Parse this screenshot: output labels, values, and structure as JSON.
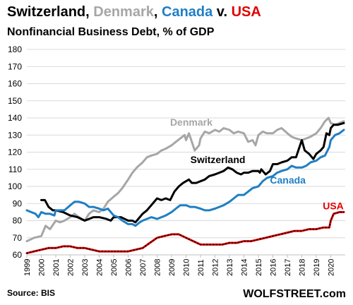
{
  "header": {
    "title_parts": [
      {
        "text": "Switzerland",
        "color": "#000000"
      },
      {
        "text": ", ",
        "color": "#000000"
      },
      {
        "text": "Denmark",
        "color": "#a6a6a6"
      },
      {
        "text": ", ",
        "color": "#000000"
      },
      {
        "text": "Canada",
        "color": "#1f7fc4"
      },
      {
        "text": " v. ",
        "color": "#000000"
      },
      {
        "text": "USA",
        "color": "#e00000"
      }
    ],
    "subtitle": "Nonfinancial Business Debt, % of GDP"
  },
  "footer": {
    "source": "Source: BIS",
    "brand": "WOLFSTREET.com"
  },
  "chart_data": {
    "type": "line",
    "title": "Switzerland, Denmark, Canada v. USA",
    "subtitle": "Nonfinancial Business Debt, % of GDP",
    "xlim": [
      1999.0,
      2021.0
    ],
    "ylim": [
      60,
      180
    ],
    "y_ticks": [
      60,
      70,
      80,
      90,
      100,
      110,
      120,
      130,
      140,
      150,
      160,
      170,
      180
    ],
    "x_ticks": [
      1999,
      2000,
      2001,
      2002,
      2003,
      2004,
      2005,
      2006,
      2007,
      2008,
      2009,
      2010,
      2011,
      2012,
      2013,
      2014,
      2015,
      2016,
      2017,
      2018,
      2019,
      2020
    ],
    "grid": "horizontal",
    "legend": "inline labels",
    "series": [
      {
        "name": "Denmark",
        "color": "#a6a6a6",
        "label_at": [
          2008.9,
          135.5
        ],
        "points": [
          [
            1999.0,
            68
          ],
          [
            1999.5,
            70
          ],
          [
            2000.0,
            71
          ],
          [
            2000.3,
            77
          ],
          [
            2000.6,
            75
          ],
          [
            2001.0,
            80
          ],
          [
            2001.3,
            79
          ],
          [
            2001.6,
            80
          ],
          [
            2002.0,
            82
          ],
          [
            2002.3,
            84
          ],
          [
            2002.6,
            82
          ],
          [
            2003.0,
            80
          ],
          [
            2003.3,
            84
          ],
          [
            2003.6,
            86
          ],
          [
            2004.0,
            85
          ],
          [
            2004.3,
            87
          ],
          [
            2004.6,
            91
          ],
          [
            2005.0,
            94
          ],
          [
            2005.3,
            96
          ],
          [
            2005.6,
            99
          ],
          [
            2006.0,
            104
          ],
          [
            2006.3,
            108
          ],
          [
            2006.6,
            111
          ],
          [
            2007.0,
            114
          ],
          [
            2007.3,
            117
          ],
          [
            2007.6,
            118
          ],
          [
            2008.0,
            119
          ],
          [
            2008.3,
            121
          ],
          [
            2008.6,
            122
          ],
          [
            2009.0,
            124
          ],
          [
            2009.3,
            126
          ],
          [
            2009.6,
            128
          ],
          [
            2009.9,
            130
          ],
          [
            2010.0,
            127
          ],
          [
            2010.2,
            131
          ],
          [
            2010.4,
            126
          ],
          [
            2010.6,
            121
          ],
          [
            2010.9,
            124
          ],
          [
            2011.0,
            128
          ],
          [
            2011.3,
            132
          ],
          [
            2011.6,
            131
          ],
          [
            2012.0,
            133
          ],
          [
            2012.3,
            132
          ],
          [
            2012.6,
            134
          ],
          [
            2013.0,
            133
          ],
          [
            2013.3,
            131
          ],
          [
            2013.6,
            132
          ],
          [
            2014.0,
            131
          ],
          [
            2014.3,
            126
          ],
          [
            2014.6,
            127
          ],
          [
            2014.8,
            124
          ],
          [
            2015.0,
            130
          ],
          [
            2015.3,
            132
          ],
          [
            2015.6,
            131
          ],
          [
            2016.0,
            131
          ],
          [
            2016.3,
            133
          ],
          [
            2016.6,
            134
          ],
          [
            2017.0,
            131
          ],
          [
            2017.3,
            129
          ],
          [
            2017.6,
            128
          ],
          [
            2018.0,
            127
          ],
          [
            2018.3,
            128
          ],
          [
            2018.6,
            129
          ],
          [
            2019.0,
            131
          ],
          [
            2019.3,
            134
          ],
          [
            2019.6,
            138
          ],
          [
            2019.85,
            140
          ],
          [
            2020.0,
            137
          ],
          [
            2020.3,
            136
          ],
          [
            2020.6,
            137
          ],
          [
            2020.9,
            138
          ]
        ]
      },
      {
        "name": "Switzerland",
        "color": "#000000",
        "label_at": [
          2010.3,
          113.6
        ],
        "points": [
          [
            2000.0,
            92
          ],
          [
            2000.25,
            92
          ],
          [
            2000.5,
            88
          ],
          [
            2000.8,
            86
          ],
          [
            2001.0,
            86
          ],
          [
            2001.5,
            85
          ],
          [
            2002.0,
            83
          ],
          [
            2002.5,
            82
          ],
          [
            2003.0,
            80
          ],
          [
            2003.3,
            81
          ],
          [
            2003.6,
            82
          ],
          [
            2004.0,
            82
          ],
          [
            2004.5,
            81
          ],
          [
            2004.8,
            80
          ],
          [
            2005.0,
            82
          ],
          [
            2005.5,
            82
          ],
          [
            2006.0,
            80
          ],
          [
            2006.3,
            80
          ],
          [
            2006.5,
            79
          ],
          [
            2006.7,
            81
          ],
          [
            2007.0,
            84
          ],
          [
            2007.3,
            86
          ],
          [
            2007.6,
            89
          ],
          [
            2008.0,
            93
          ],
          [
            2008.3,
            92
          ],
          [
            2008.6,
            93
          ],
          [
            2008.9,
            92
          ],
          [
            2009.2,
            97
          ],
          [
            2009.5,
            100
          ],
          [
            2009.8,
            102
          ],
          [
            2010.0,
            103
          ],
          [
            2010.2,
            104
          ],
          [
            2010.4,
            102
          ],
          [
            2010.7,
            102
          ],
          [
            2011.0,
            103
          ],
          [
            2011.3,
            104
          ],
          [
            2011.6,
            106
          ],
          [
            2012.0,
            107
          ],
          [
            2012.3,
            108
          ],
          [
            2012.6,
            109
          ],
          [
            2012.9,
            111
          ],
          [
            2013.2,
            110
          ],
          [
            2013.5,
            108
          ],
          [
            2013.8,
            107
          ],
          [
            2014.0,
            108
          ],
          [
            2014.3,
            108
          ],
          [
            2014.6,
            109
          ],
          [
            2015.0,
            109
          ],
          [
            2015.1,
            108
          ],
          [
            2015.2,
            110
          ],
          [
            2015.5,
            107
          ],
          [
            2015.8,
            109
          ],
          [
            2016.0,
            113
          ],
          [
            2016.3,
            113
          ],
          [
            2016.6,
            114
          ],
          [
            2017.0,
            115
          ],
          [
            2017.3,
            117
          ],
          [
            2017.6,
            117
          ],
          [
            2017.8,
            122
          ],
          [
            2018.0,
            127
          ],
          [
            2018.2,
            121
          ],
          [
            2018.5,
            119
          ],
          [
            2018.8,
            116
          ],
          [
            2019.0,
            119
          ],
          [
            2019.3,
            121
          ],
          [
            2019.5,
            123
          ],
          [
            2019.7,
            131
          ],
          [
            2019.9,
            130
          ],
          [
            2020.0,
            134
          ],
          [
            2020.2,
            136
          ],
          [
            2020.5,
            136
          ],
          [
            2020.9,
            137
          ]
        ]
      },
      {
        "name": "Canada",
        "color": "#1f7fc4",
        "label_at": [
          2015.8,
          101.7
        ],
        "points": [
          [
            1999.0,
            86
          ],
          [
            1999.3,
            85
          ],
          [
            1999.6,
            84
          ],
          [
            1999.8,
            82
          ],
          [
            2000.0,
            85
          ],
          [
            2000.3,
            84
          ],
          [
            2000.6,
            84
          ],
          [
            2000.9,
            83
          ],
          [
            2001.0,
            86
          ],
          [
            2001.3,
            86
          ],
          [
            2001.6,
            86
          ],
          [
            2002.0,
            89
          ],
          [
            2002.3,
            91
          ],
          [
            2002.6,
            91
          ],
          [
            2003.0,
            90
          ],
          [
            2003.3,
            88
          ],
          [
            2003.6,
            88
          ],
          [
            2004.0,
            87
          ],
          [
            2004.3,
            86
          ],
          [
            2004.6,
            87
          ],
          [
            2005.0,
            83
          ],
          [
            2005.3,
            82
          ],
          [
            2005.6,
            80
          ],
          [
            2006.0,
            78
          ],
          [
            2006.3,
            78
          ],
          [
            2006.5,
            77
          ],
          [
            2006.8,
            79
          ],
          [
            2007.0,
            80
          ],
          [
            2007.3,
            81
          ],
          [
            2007.6,
            82
          ],
          [
            2008.0,
            81
          ],
          [
            2008.3,
            82
          ],
          [
            2008.6,
            83
          ],
          [
            2009.0,
            85
          ],
          [
            2009.3,
            87
          ],
          [
            2009.6,
            89
          ],
          [
            2010.0,
            89
          ],
          [
            2010.3,
            88
          ],
          [
            2010.6,
            88
          ],
          [
            2011.0,
            87
          ],
          [
            2011.3,
            86
          ],
          [
            2011.6,
            86
          ],
          [
            2012.0,
            87
          ],
          [
            2012.3,
            88
          ],
          [
            2012.6,
            89
          ],
          [
            2013.0,
            91
          ],
          [
            2013.3,
            93
          ],
          [
            2013.6,
            95
          ],
          [
            2014.0,
            95
          ],
          [
            2014.3,
            97
          ],
          [
            2014.6,
            99
          ],
          [
            2015.0,
            100
          ],
          [
            2015.3,
            103
          ],
          [
            2015.6,
            105
          ],
          [
            2016.0,
            106
          ],
          [
            2016.3,
            108
          ],
          [
            2016.6,
            109
          ],
          [
            2017.0,
            110
          ],
          [
            2017.3,
            112
          ],
          [
            2017.6,
            111
          ],
          [
            2018.0,
            111
          ],
          [
            2018.3,
            112
          ],
          [
            2018.6,
            114
          ],
          [
            2019.0,
            115
          ],
          [
            2019.3,
            117
          ],
          [
            2019.6,
            118
          ],
          [
            2019.9,
            123
          ],
          [
            2020.0,
            127
          ],
          [
            2020.3,
            130
          ],
          [
            2020.6,
            131
          ],
          [
            2020.9,
            133
          ]
        ]
      },
      {
        "name": "USA",
        "color": "#e00000",
        "label_at": [
          2019.45,
          86.5
        ],
        "points": [
          [
            1999.0,
            61
          ],
          [
            1999.5,
            62
          ],
          [
            2000.0,
            63
          ],
          [
            2000.5,
            64
          ],
          [
            2001.0,
            64
          ],
          [
            2001.5,
            65
          ],
          [
            2002.0,
            65
          ],
          [
            2002.5,
            64
          ],
          [
            2003.0,
            64
          ],
          [
            2003.5,
            63
          ],
          [
            2004.0,
            62
          ],
          [
            2004.5,
            62
          ],
          [
            2005.0,
            62
          ],
          [
            2005.5,
            62
          ],
          [
            2006.0,
            62
          ],
          [
            2006.5,
            63
          ],
          [
            2007.0,
            64
          ],
          [
            2007.5,
            67
          ],
          [
            2008.0,
            70
          ],
          [
            2008.5,
            71
          ],
          [
            2009.0,
            72
          ],
          [
            2009.5,
            72
          ],
          [
            2010.0,
            70
          ],
          [
            2010.5,
            68
          ],
          [
            2011.0,
            66
          ],
          [
            2011.5,
            66
          ],
          [
            2012.0,
            66
          ],
          [
            2012.5,
            66
          ],
          [
            2013.0,
            67
          ],
          [
            2013.5,
            67
          ],
          [
            2014.0,
            68
          ],
          [
            2014.5,
            68
          ],
          [
            2015.0,
            69
          ],
          [
            2015.5,
            70
          ],
          [
            2016.0,
            71
          ],
          [
            2016.5,
            72
          ],
          [
            2017.0,
            73
          ],
          [
            2017.5,
            74
          ],
          [
            2018.0,
            74
          ],
          [
            2018.5,
            75
          ],
          [
            2019.0,
            75
          ],
          [
            2019.5,
            76
          ],
          [
            2019.9,
            76
          ],
          [
            2020.0,
            80
          ],
          [
            2020.2,
            84
          ],
          [
            2020.6,
            85
          ],
          [
            2020.9,
            85
          ]
        ]
      }
    ]
  }
}
